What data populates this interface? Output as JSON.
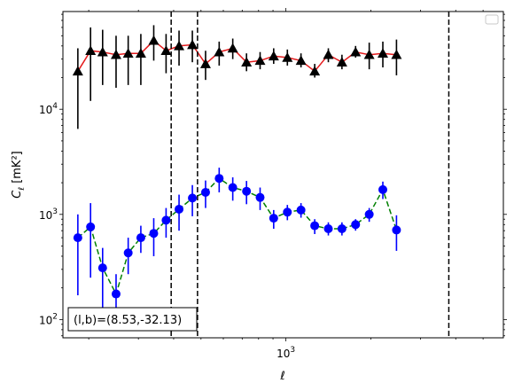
{
  "chart_data": {
    "type": "scatter",
    "xlabel": "ℓ",
    "ylabel": "C_ℓ  [mK²]",
    "xscale": "log",
    "yscale": "log",
    "xlim": [
      162,
      5900
    ],
    "ylim": [
      67,
      85000
    ],
    "x_tick_labels": [
      {
        "value": 1000,
        "base": "10",
        "exp": "3"
      }
    ],
    "y_tick_labels": [
      {
        "value": 100,
        "base": "10",
        "exp": "2"
      },
      {
        "value": 1000,
        "base": "10",
        "exp": "3"
      },
      {
        "value": 10000,
        "base": "10",
        "exp": "4"
      }
    ],
    "legend": {
      "placement": "top-right",
      "entries": []
    },
    "vlines": [
      392,
      486,
      3780
    ],
    "annotation": "(l,b)=(8.53,-32.13)",
    "series": [
      {
        "marker": "triangle",
        "marker_color": "#000000",
        "line_color": "#e41a1c",
        "line_style": "solid",
        "errorbar_color": "#000000",
        "points": [
          {
            "x": 183,
            "y": 23000,
            "lo": 6500,
            "hi": 38000
          },
          {
            "x": 203,
            "y": 36000,
            "lo": 12000,
            "hi": 60000
          },
          {
            "x": 224,
            "y": 35000,
            "lo": 17000,
            "hi": 57000
          },
          {
            "x": 250,
            "y": 33000,
            "lo": 16000,
            "hi": 50000
          },
          {
            "x": 276,
            "y": 34000,
            "lo": 17000,
            "hi": 50000
          },
          {
            "x": 306,
            "y": 34000,
            "lo": 17000,
            "hi": 52000
          },
          {
            "x": 340,
            "y": 45000,
            "lo": 29000,
            "hi": 63000
          },
          {
            "x": 376,
            "y": 36000,
            "lo": 22000,
            "hi": 52000
          },
          {
            "x": 418,
            "y": 40000,
            "lo": 26000,
            "hi": 56000
          },
          {
            "x": 466,
            "y": 41000,
            "lo": 28000,
            "hi": 56000
          },
          {
            "x": 519,
            "y": 27000,
            "lo": 19000,
            "hi": 36000
          },
          {
            "x": 580,
            "y": 35000,
            "lo": 26000,
            "hi": 44000
          },
          {
            "x": 648,
            "y": 38000,
            "lo": 30000,
            "hi": 47000
          },
          {
            "x": 725,
            "y": 28000,
            "lo": 23000,
            "hi": 34000
          },
          {
            "x": 810,
            "y": 29000,
            "lo": 24000,
            "hi": 35000
          },
          {
            "x": 905,
            "y": 32000,
            "lo": 27000,
            "hi": 38000
          },
          {
            "x": 1012,
            "y": 31000,
            "lo": 26000,
            "hi": 37000
          },
          {
            "x": 1131,
            "y": 29000,
            "lo": 25000,
            "hi": 34000
          },
          {
            "x": 1265,
            "y": 23000,
            "lo": 20000,
            "hi": 27000
          },
          {
            "x": 1414,
            "y": 33000,
            "lo": 28000,
            "hi": 38000
          },
          {
            "x": 1580,
            "y": 28000,
            "lo": 24000,
            "hi": 33000
          },
          {
            "x": 1766,
            "y": 35000,
            "lo": 31000,
            "hi": 40000
          },
          {
            "x": 1974,
            "y": 33000,
            "lo": 24000,
            "hi": 43000
          },
          {
            "x": 2206,
            "y": 34000,
            "lo": 25000,
            "hi": 44000
          },
          {
            "x": 2466,
            "y": 33000,
            "lo": 21000,
            "hi": 46000
          }
        ]
      },
      {
        "marker": "circle",
        "marker_color": "#0000ff",
        "line_color": "#008000",
        "line_style": "dashed",
        "errorbar_color": "#0000ff",
        "points": [
          {
            "x": 183,
            "y": 600,
            "lo": 170,
            "hi": 1000
          },
          {
            "x": 203,
            "y": 760,
            "lo": 250,
            "hi": 1280
          },
          {
            "x": 224,
            "y": 310,
            "lo": 130,
            "hi": 480
          },
          {
            "x": 250,
            "y": 175,
            "lo": 100,
            "hi": 270
          },
          {
            "x": 276,
            "y": 430,
            "lo": 270,
            "hi": 600
          },
          {
            "x": 306,
            "y": 600,
            "lo": 430,
            "hi": 780
          },
          {
            "x": 340,
            "y": 660,
            "lo": 400,
            "hi": 920
          },
          {
            "x": 376,
            "y": 880,
            "lo": 600,
            "hi": 1150
          },
          {
            "x": 418,
            "y": 1120,
            "lo": 700,
            "hi": 1540
          },
          {
            "x": 466,
            "y": 1430,
            "lo": 960,
            "hi": 1900
          },
          {
            "x": 519,
            "y": 1620,
            "lo": 1150,
            "hi": 2100
          },
          {
            "x": 580,
            "y": 2200,
            "lo": 1620,
            "hi": 2780
          },
          {
            "x": 648,
            "y": 1800,
            "lo": 1350,
            "hi": 2250
          },
          {
            "x": 725,
            "y": 1660,
            "lo": 1250,
            "hi": 2080
          },
          {
            "x": 810,
            "y": 1450,
            "lo": 1100,
            "hi": 1800
          },
          {
            "x": 905,
            "y": 920,
            "lo": 730,
            "hi": 1100
          },
          {
            "x": 1012,
            "y": 1050,
            "lo": 880,
            "hi": 1230
          },
          {
            "x": 1131,
            "y": 1100,
            "lo": 930,
            "hi": 1280
          },
          {
            "x": 1265,
            "y": 780,
            "lo": 650,
            "hi": 900
          },
          {
            "x": 1414,
            "y": 730,
            "lo": 630,
            "hi": 840
          },
          {
            "x": 1580,
            "y": 730,
            "lo": 630,
            "hi": 840
          },
          {
            "x": 1766,
            "y": 800,
            "lo": 700,
            "hi": 900
          },
          {
            "x": 1974,
            "y": 1000,
            "lo": 850,
            "hi": 1150
          },
          {
            "x": 2206,
            "y": 1720,
            "lo": 1400,
            "hi": 2050
          },
          {
            "x": 2466,
            "y": 710,
            "lo": 450,
            "hi": 980
          }
        ]
      }
    ]
  }
}
